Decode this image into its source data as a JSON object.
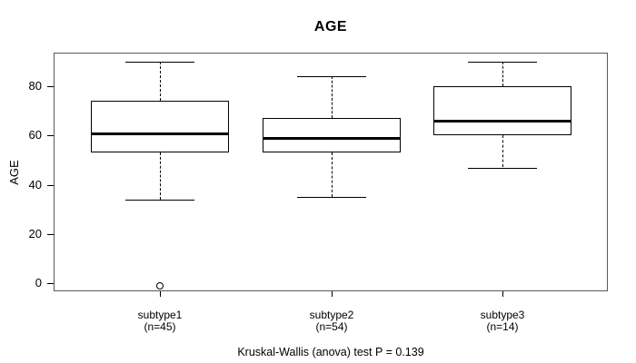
{
  "chart_data": {
    "type": "boxplot",
    "title": "AGE",
    "ylabel": "AGE",
    "xlabel": "",
    "yticks": [
      0,
      20,
      40,
      60,
      80
    ],
    "ylim": [
      -4,
      94
    ],
    "grid": false,
    "legend": "none",
    "caption": "Kruskal-Wallis (anova) test P = 0.139",
    "groups": [
      {
        "label": "subtype1",
        "sublabel": "(n=45)",
        "n": 45,
        "whisker_low": 34,
        "q1": 53,
        "median": 61,
        "q3": 74,
        "whisker_high": 90,
        "outliers": [
          -1
        ]
      },
      {
        "label": "subtype2",
        "sublabel": "(n=54)",
        "n": 54,
        "whisker_low": 35,
        "q1": 53,
        "median": 59,
        "q3": 67,
        "whisker_high": 84,
        "outliers": []
      },
      {
        "label": "subtype3",
        "sublabel": "(n=14)",
        "n": 14,
        "whisker_low": 47,
        "q1": 60,
        "median": 66,
        "q3": 80,
        "whisker_high": 90,
        "outliers": []
      }
    ]
  },
  "colors": {
    "background": "#ffffff",
    "text": "#000000",
    "box_line": "#000000",
    "median_line": "#000000",
    "frame": "#595959"
  }
}
